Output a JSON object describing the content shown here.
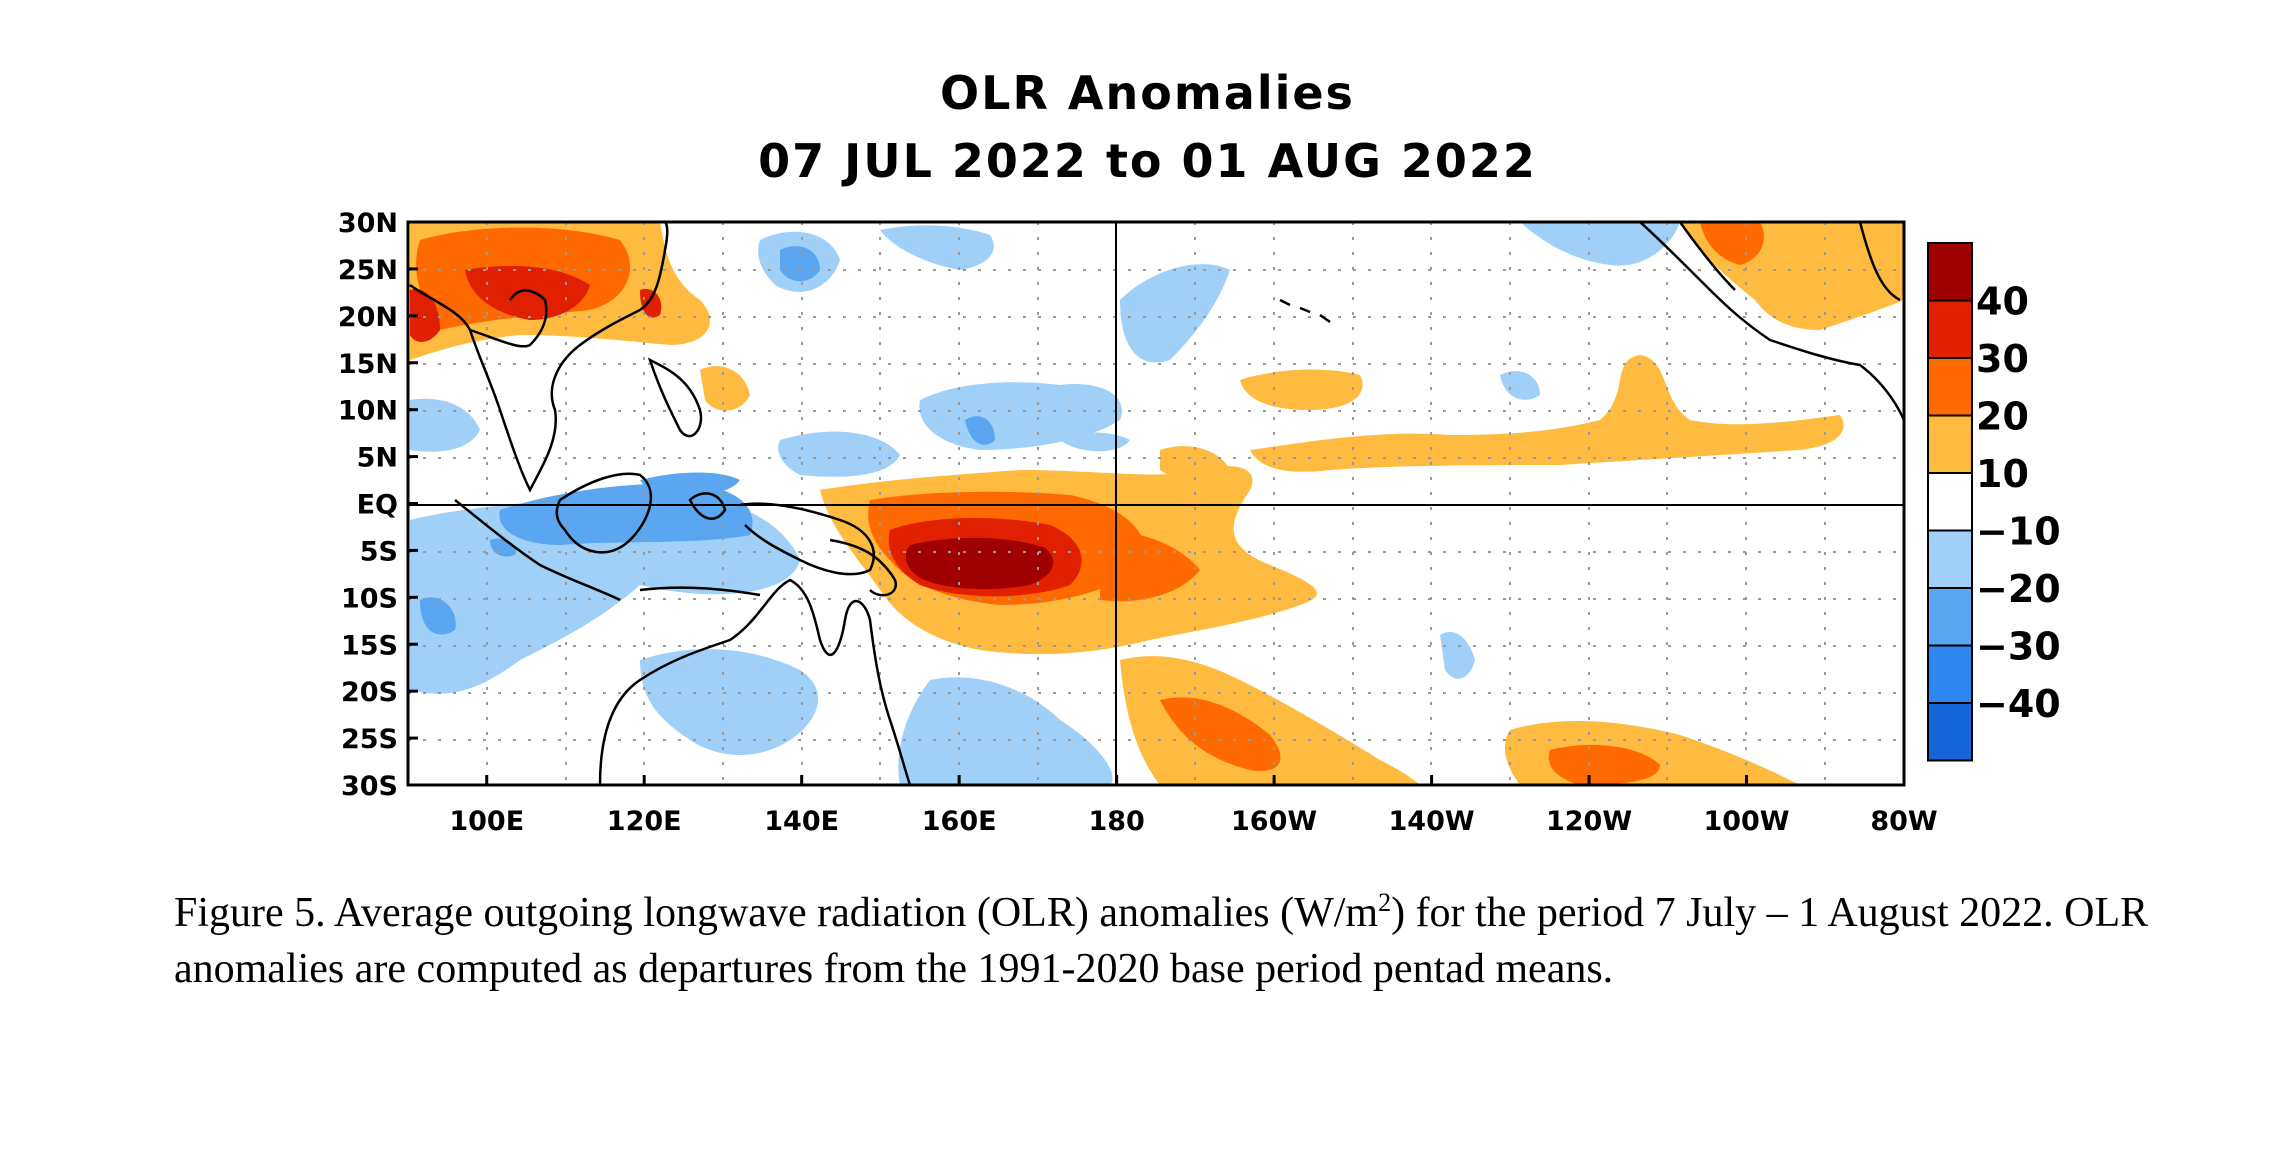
{
  "title": {
    "line1": "OLR Anomalies",
    "line2": "07 JUL 2022 to 01 AUG 2022"
  },
  "map": {
    "lat_labels": [
      "30N",
      "25N",
      "20N",
      "15N",
      "10N",
      "5N",
      "EQ",
      "5S",
      "10S",
      "15S",
      "20S",
      "25S",
      "30S"
    ],
    "lon_labels": [
      "100E",
      "120E",
      "140E",
      "160E",
      "180",
      "160W",
      "140W",
      "120W",
      "100W",
      "80W"
    ],
    "lon_range": [
      90,
      280
    ],
    "lat_range": [
      -30,
      30
    ],
    "grid": "dotted",
    "reference_lines": [
      "EQ",
      "180"
    ]
  },
  "colorbar": {
    "labels": [
      "40",
      "30",
      "20",
      "10",
      "−10",
      "−20",
      "−30",
      "−40"
    ],
    "colors": [
      "#a00000",
      "#e02000",
      "#ff6a00",
      "#ffbb40",
      "#ffffff",
      "#a0d0f8",
      "#5aa6f0",
      "#2e86f0",
      "#1565d8"
    ],
    "units": "W/m2"
  },
  "caption": {
    "text_before_sup": "Figure 5. Average outgoing longwave radiation (OLR) anomalies (W/m",
    "sup": "2",
    "text_after_sup": ") for the period 7 July – 1 August 2022.  OLR anomalies are computed as departures from the 1991-2020 base period pentad means."
  }
}
